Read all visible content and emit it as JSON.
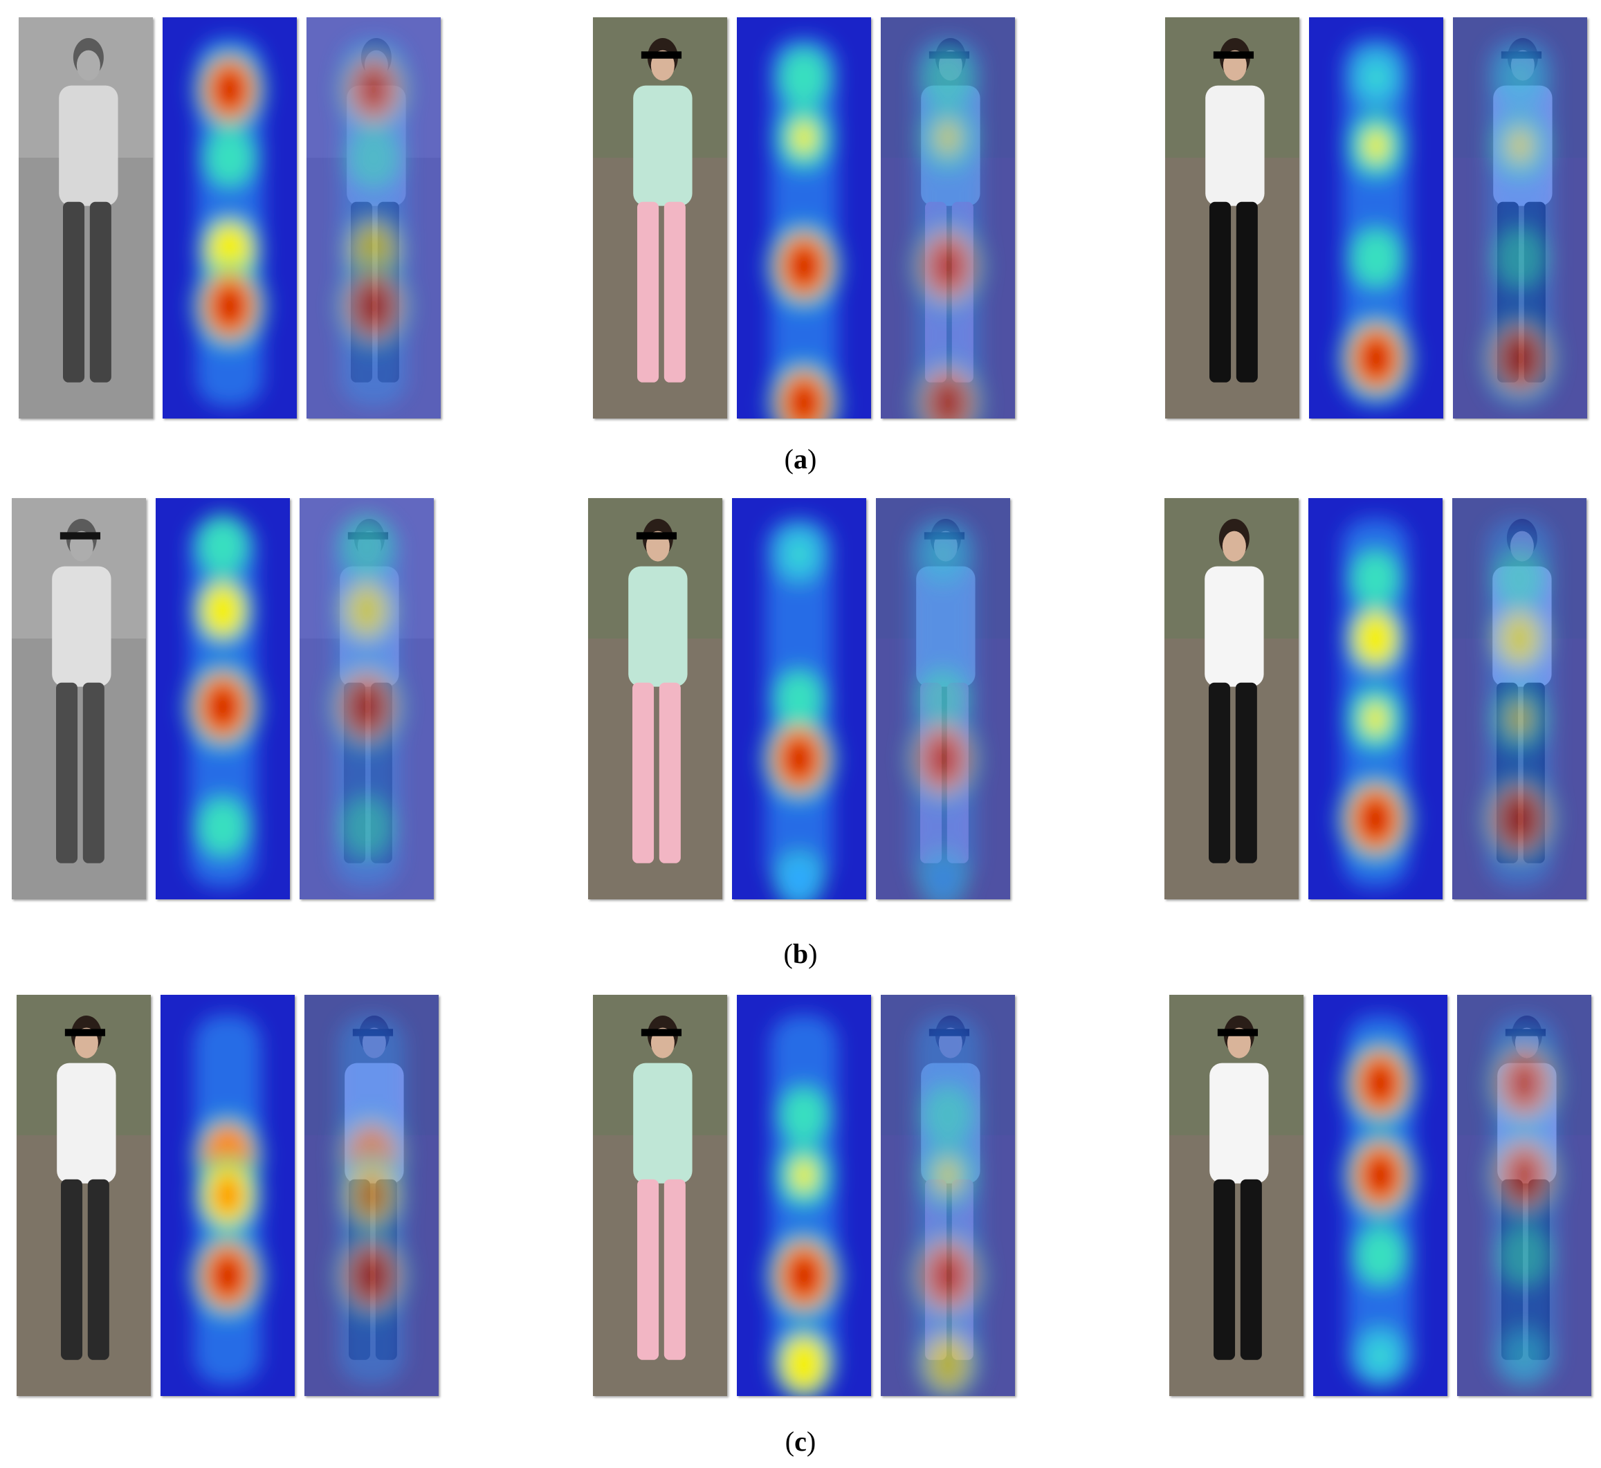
{
  "figure": {
    "captions": [
      {
        "open": "(",
        "letter": "a",
        "close": ")"
      },
      {
        "open": "(",
        "letter": "b",
        "close": ")"
      },
      {
        "open": "(",
        "letter": "c",
        "close": ")"
      }
    ],
    "rows": [
      {
        "label": "a",
        "pedestrians": [
          {
            "photo_tone": "grayscale",
            "clothing": [
              "#e8e8e8",
              "#3a3a3a"
            ],
            "censor_bar": false,
            "hotspots": [
              {
                "v": 0.9,
                "y": 0.18
              },
              {
                "v": 0.55,
                "y": 0.35
              },
              {
                "v": 0.7,
                "y": 0.58
              },
              {
                "v": 0.95,
                "y": 0.72
              }
            ]
          },
          {
            "photo_tone": "color",
            "clothing": [
              "#bfe6d6",
              "#f2b6c4"
            ],
            "censor_bar": true,
            "hotspots": [
              {
                "v": 0.55,
                "y": 0.15
              },
              {
                "v": 0.6,
                "y": 0.3
              },
              {
                "v": 0.95,
                "y": 0.62
              },
              {
                "v": 0.9,
                "y": 0.96
              }
            ]
          },
          {
            "photo_tone": "color",
            "clothing": [
              "#f2f2f2",
              "#111111"
            ],
            "censor_bar": true,
            "hotspots": [
              {
                "v": 0.45,
                "y": 0.15
              },
              {
                "v": 0.6,
                "y": 0.32
              },
              {
                "v": 0.55,
                "y": 0.6
              },
              {
                "v": 0.95,
                "y": 0.85
              }
            ]
          }
        ]
      },
      {
        "label": "b",
        "pedestrians": [
          {
            "photo_tone": "grayscale",
            "clothing": [
              "#f0f0f0",
              "#444444"
            ],
            "censor_bar": true,
            "hotspots": [
              {
                "v": 0.55,
                "y": 0.12
              },
              {
                "v": 0.65,
                "y": 0.28
              },
              {
                "v": 0.98,
                "y": 0.52
              },
              {
                "v": 0.55,
                "y": 0.82
              }
            ]
          },
          {
            "photo_tone": "color",
            "clothing": [
              "#bfe6d6",
              "#f2b6c4"
            ],
            "censor_bar": true,
            "hotspots": [
              {
                "v": 0.45,
                "y": 0.14
              },
              {
                "v": 0.5,
                "y": 0.5
              },
              {
                "v": 0.95,
                "y": 0.65
              },
              {
                "v": 0.4,
                "y": 0.95
              }
            ]
          },
          {
            "photo_tone": "color",
            "clothing": [
              "#f5f5f5",
              "#151515"
            ],
            "censor_bar": false,
            "hotspots": [
              {
                "v": 0.5,
                "y": 0.2
              },
              {
                "v": 0.65,
                "y": 0.35
              },
              {
                "v": 0.6,
                "y": 0.55
              },
              {
                "v": 0.98,
                "y": 0.8
              }
            ]
          }
        ]
      },
      {
        "label": "c",
        "pedestrians": [
          {
            "photo_tone": "color",
            "clothing": [
              "#f2f2f2",
              "#2a2a2a"
            ],
            "censor_bar": true,
            "hotspots": [
              {
                "v": 0.85,
                "y": 0.4
              },
              {
                "v": 0.8,
                "y": 0.5
              },
              {
                "v": 0.95,
                "y": 0.7
              }
            ]
          },
          {
            "photo_tone": "color",
            "clothing": [
              "#bfe6d6",
              "#f2b6c4"
            ],
            "censor_bar": true,
            "hotspots": [
              {
                "v": 0.5,
                "y": 0.3
              },
              {
                "v": 0.6,
                "y": 0.45
              },
              {
                "v": 0.98,
                "y": 0.7
              },
              {
                "v": 0.7,
                "y": 0.92
              }
            ]
          },
          {
            "photo_tone": "color",
            "clothing": [
              "#f5f5f5",
              "#141414"
            ],
            "censor_bar": true,
            "hotspots": [
              {
                "v": 0.95,
                "y": 0.22
              },
              {
                "v": 0.95,
                "y": 0.45
              },
              {
                "v": 0.55,
                "y": 0.65
              },
              {
                "v": 0.45,
                "y": 0.9
              }
            ]
          }
        ]
      }
    ]
  }
}
